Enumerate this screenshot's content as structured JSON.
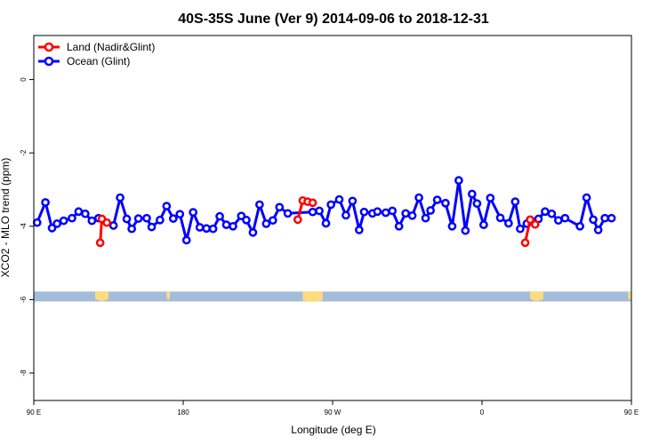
{
  "chart_data": {
    "type": "line",
    "title": "40S-35S June (Ver 9)   2014-09-06 to 2018-12-31",
    "xlabel": "Longitude (deg E)",
    "ylabel": "XCO2 - MLO trend (ppm)",
    "xlim": [
      90,
      450
    ],
    "ylim": [
      -8.75,
      1.2
    ],
    "x_ticks": [
      {
        "value": 90,
        "label": "90 E"
      },
      {
        "value": 180,
        "label": "180"
      },
      {
        "value": 270,
        "label": "90 W"
      },
      {
        "value": 360,
        "label": "0"
      },
      {
        "value": 450,
        "label": "90 E"
      },
      {
        "value": 540,
        "label": "180"
      }
    ],
    "y_ticks": [
      {
        "value": 0,
        "label": "0"
      },
      {
        "value": -2,
        "label": "-2"
      },
      {
        "value": -4,
        "label": "-4"
      },
      {
        "value": -6,
        "label": "-6"
      },
      {
        "value": -8,
        "label": "-8"
      }
    ],
    "legend_position": "top-left",
    "colors": {
      "land": "#ff0000",
      "ocean": "#0000ff",
      "ocean_band": "#a4bcdc",
      "land_band": "#fcdc7c"
    },
    "series": [
      {
        "name": "Land (Nadir&Glint)",
        "color": "#ff0000",
        "segments": [
          [
            [
              130,
              -4.45
            ],
            [
              131,
              -3.8
            ],
            [
              134,
              -3.9
            ]
          ],
          [
            [
              249,
              -3.82
            ],
            [
              252,
              -3.3
            ],
            [
              255,
              -3.33
            ],
            [
              258,
              -3.36
            ]
          ],
          [
            [
              386,
              -4.45
            ],
            [
              389,
              -3.82
            ],
            [
              392,
              -3.95
            ]
          ]
        ]
      },
      {
        "name": "Ocean (Glint)",
        "color": "#0000ff",
        "points": [
          [
            92,
            -3.9
          ],
          [
            97,
            -3.35
          ],
          [
            101,
            -4.05
          ],
          [
            104,
            -3.93
          ],
          [
            108,
            -3.85
          ],
          [
            113,
            -3.78
          ],
          [
            117,
            -3.6
          ],
          [
            121,
            -3.66
          ],
          [
            125,
            -3.85
          ],
          [
            129,
            -3.78
          ],
          [
            138,
            -3.98
          ],
          [
            142,
            -3.22
          ],
          [
            146,
            -3.8
          ],
          [
            149,
            -4.07
          ],
          [
            153,
            -3.79
          ],
          [
            158,
            -3.78
          ],
          [
            161,
            -4.02
          ],
          [
            166,
            -3.83
          ],
          [
            170,
            -3.45
          ],
          [
            174,
            -3.79
          ],
          [
            178,
            -3.67
          ],
          [
            182,
            -4.38
          ],
          [
            186,
            -3.62
          ],
          [
            190,
            -4.03
          ],
          [
            194,
            -4.06
          ],
          [
            198,
            -4.07
          ],
          [
            202,
            -3.73
          ],
          [
            206,
            -3.96
          ],
          [
            210,
            -4.0
          ],
          [
            215,
            -3.72
          ],
          [
            218,
            -3.83
          ],
          [
            222,
            -4.17
          ],
          [
            226,
            -3.41
          ],
          [
            230,
            -3.93
          ],
          [
            234,
            -3.84
          ],
          [
            238,
            -3.48
          ],
          [
            243,
            -3.65
          ],
          [
            258,
            -3.61
          ],
          [
            262,
            -3.58
          ],
          [
            266,
            -3.92
          ],
          [
            269,
            -3.41
          ],
          [
            274,
            -3.27
          ],
          [
            278,
            -3.7
          ],
          [
            282,
            -3.31
          ],
          [
            286,
            -4.1
          ],
          [
            289,
            -3.61
          ],
          [
            294,
            -3.65
          ],
          [
            297,
            -3.6
          ],
          [
            302,
            -3.63
          ],
          [
            306,
            -3.58
          ],
          [
            310,
            -4.0
          ],
          [
            314,
            -3.65
          ],
          [
            318,
            -3.71
          ],
          [
            322,
            -3.22
          ],
          [
            326,
            -3.78
          ],
          [
            329,
            -3.57
          ],
          [
            333,
            -3.28
          ],
          [
            338,
            -3.37
          ],
          [
            342,
            -4.0
          ],
          [
            346,
            -2.75
          ],
          [
            350,
            -4.12
          ],
          [
            354,
            -3.12
          ],
          [
            357,
            -3.38
          ],
          [
            361,
            -3.96
          ],
          [
            365,
            -3.23
          ],
          [
            371,
            -3.77
          ],
          [
            376,
            -3.92
          ],
          [
            380,
            -3.33
          ],
          [
            383,
            -4.07
          ],
          [
            387,
            -3.93
          ],
          [
            390,
            -3.86
          ],
          [
            394,
            -3.8
          ],
          [
            398,
            -3.6
          ],
          [
            402,
            -3.66
          ],
          [
            406,
            -3.84
          ],
          [
            410,
            -3.78
          ],
          [
            419,
            -4.0
          ],
          [
            423,
            -3.22
          ],
          [
            427,
            -3.82
          ],
          [
            430,
            -4.1
          ],
          [
            434,
            -3.78
          ],
          [
            438,
            -3.78
          ]
        ]
      }
    ]
  }
}
